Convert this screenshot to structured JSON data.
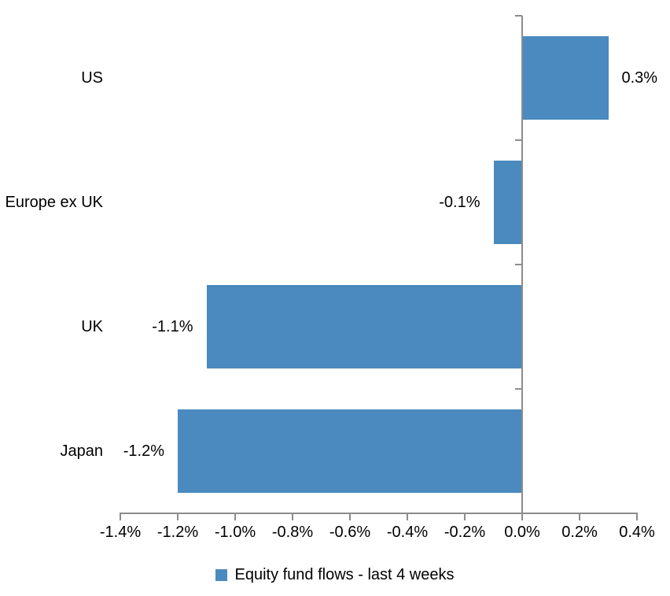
{
  "chart_data": {
    "type": "bar",
    "orientation": "horizontal",
    "title": "",
    "xlabel": "",
    "ylabel": "",
    "grid": false,
    "legend_position": "bottom",
    "categories": [
      "US",
      "Europe ex UK",
      "UK",
      "Japan"
    ],
    "series": [
      {
        "name": "Equity fund flows - last 4 weeks",
        "values": [
          0.3,
          -0.1,
          -1.1,
          -1.2
        ],
        "data_labels": [
          "0.3%",
          "-0.1%",
          "-1.1%",
          "-1.2%"
        ]
      }
    ],
    "xlim": [
      -1.4,
      0.4
    ],
    "x_tick_step": 0.2,
    "x_tick_labels": [
      "-1.4%",
      "-1.2%",
      "-1.0%",
      "-0.8%",
      "-0.6%",
      "-0.4%",
      "-0.2%",
      "0.0%",
      "0.2%",
      "0.4%"
    ],
    "bar_color": "#4A8ABE",
    "axis_color": "#8C8C8C",
    "text_color": "#000000"
  },
  "legend": {
    "label": "Equity fund flows - last 4 weeks",
    "marker_color": "#4A8ABE",
    "marker_icon": "square-icon"
  }
}
